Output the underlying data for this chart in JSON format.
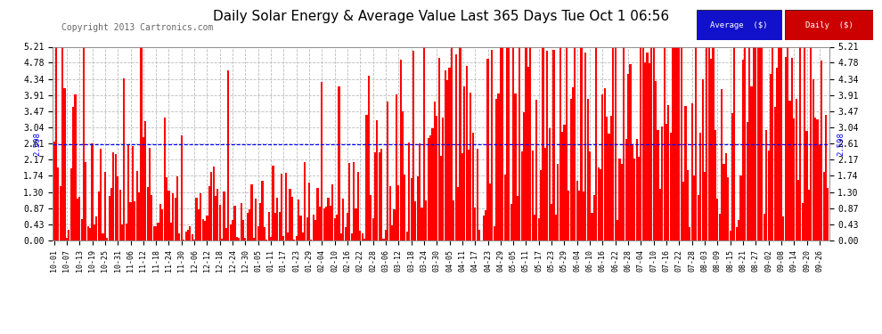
{
  "title": "Daily Solar Energy & Average Value Last 365 Days Tue Oct 1 06:56",
  "copyright": "Copyright 2013 Cartronics.com",
  "average_value": 2.598,
  "y_max": 5.21,
  "y_ticks": [
    0.0,
    0.43,
    0.87,
    1.3,
    1.74,
    2.17,
    2.61,
    3.04,
    3.47,
    3.91,
    4.34,
    4.78,
    5.21
  ],
  "bar_color": "#FF0000",
  "average_line_color": "#0000FF",
  "background_color": "#FFFFFF",
  "grid_color": "#BBBBBB",
  "title_fontsize": 11,
  "copyright_fontsize": 7,
  "legend_labels": [
    "Average  ($)",
    "Daily  ($)"
  ],
  "legend_colors": [
    "#1111CC",
    "#CC0000"
  ],
  "x_labels": [
    "10-01",
    "10-07",
    "10-13",
    "10-19",
    "10-25",
    "10-31",
    "11-06",
    "11-12",
    "11-18",
    "11-24",
    "11-30",
    "12-06",
    "12-12",
    "12-18",
    "12-24",
    "12-30",
    "01-05",
    "01-11",
    "01-17",
    "01-23",
    "01-29",
    "02-04",
    "02-10",
    "02-16",
    "02-22",
    "02-28",
    "03-06",
    "03-12",
    "03-18",
    "03-24",
    "03-30",
    "04-05",
    "04-11",
    "04-17",
    "04-23",
    "04-29",
    "05-05",
    "05-11",
    "05-17",
    "05-23",
    "05-29",
    "06-04",
    "06-10",
    "06-16",
    "06-22",
    "06-28",
    "07-04",
    "07-10",
    "07-16",
    "07-22",
    "07-28",
    "08-03",
    "08-09",
    "08-15",
    "08-21",
    "08-27",
    "09-02",
    "09-08",
    "09-14",
    "09-20",
    "09-26"
  ],
  "num_bars": 365
}
